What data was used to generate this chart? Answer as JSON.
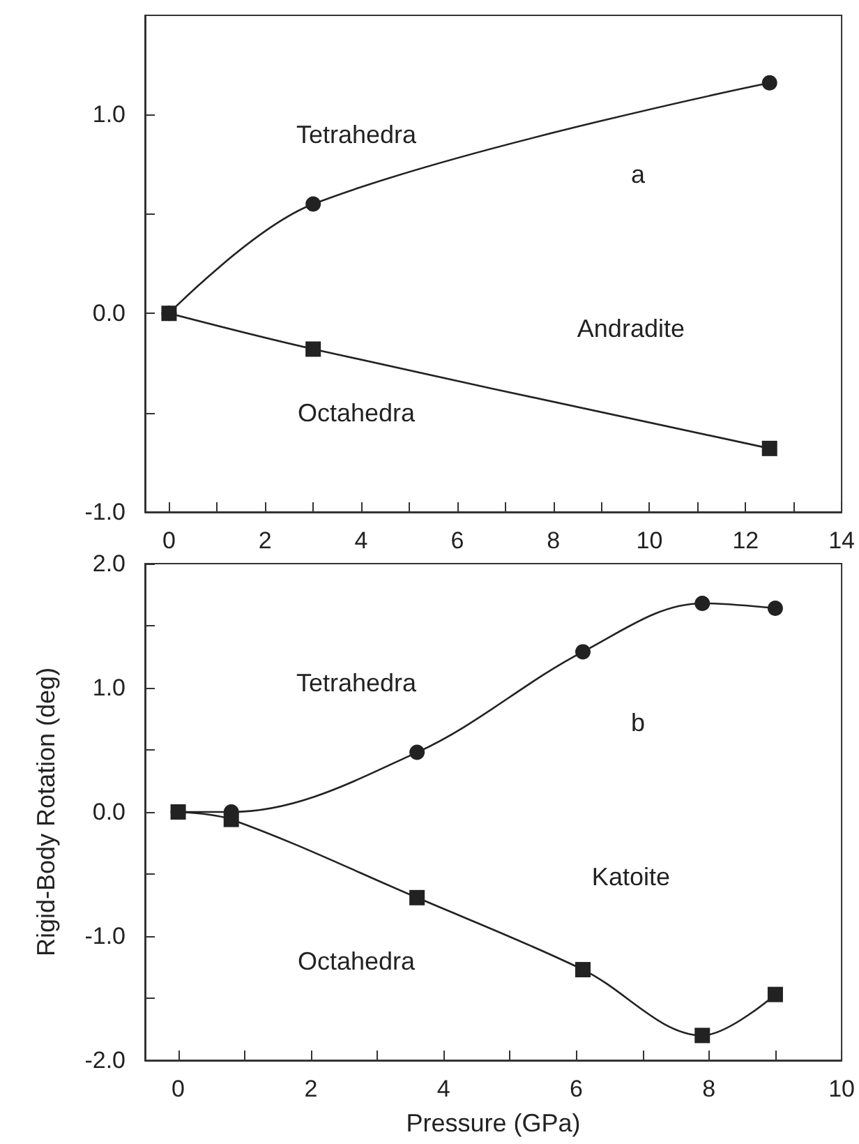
{
  "chart_data": [
    {
      "type": "line",
      "annotations": [
        "a",
        "Andradite"
      ],
      "xlim": [
        -0.5,
        14
      ],
      "xticks": [
        0,
        {
          "value": 1,
          "label": null
        },
        2,
        {
          "value": 3,
          "label": null
        },
        4,
        {
          "value": 5,
          "label": null
        },
        6,
        {
          "value": 7,
          "label": null
        },
        8,
        {
          "value": 9,
          "label": null
        },
        10,
        {
          "value": 11,
          "label": null
        },
        12,
        {
          "value": 13,
          "label": null
        },
        14
      ],
      "ylim": [
        -1,
        1.5
      ],
      "yticks": [
        {
          "value": -1,
          "label": "-1.0"
        },
        {
          "value": -0.5,
          "label": null
        },
        {
          "value": 0,
          "label": "0.0"
        },
        {
          "value": 0.5,
          "label": null
        },
        {
          "value": 1,
          "label": "1.0"
        }
      ],
      "grid": false,
      "legend": false,
      "series": [
        {
          "name": "Tetrahedra",
          "color": "#222222",
          "marker": "circle",
          "x": [
            0,
            3,
            12.5
          ],
          "values": [
            0,
            0.55,
            1.16
          ]
        },
        {
          "name": "Octahedra",
          "color": "#222222",
          "marker": "square",
          "x": [
            0,
            3,
            12.5
          ],
          "values": [
            0,
            -0.18,
            -0.68
          ]
        }
      ]
    },
    {
      "type": "line",
      "ylabel": "Rigid-Body Rotation (deg)",
      "xlabel": "Pressure (GPa)",
      "annotations": [
        "b",
        "Katoite"
      ],
      "xlim": [
        -0.5,
        10
      ],
      "xticks": [
        0,
        {
          "value": 1,
          "label": null
        },
        2,
        {
          "value": 3,
          "label": null
        },
        4,
        {
          "value": 5,
          "label": null
        },
        6,
        {
          "value": 7,
          "label": null
        },
        8,
        {
          "value": 9,
          "label": null
        },
        10
      ],
      "ylim": [
        -2,
        2
      ],
      "yticks": [
        {
          "value": -2,
          "label": "-2.0"
        },
        {
          "value": -1.5,
          "label": null
        },
        {
          "value": -1,
          "label": "-1.0"
        },
        {
          "value": -0.5,
          "label": null
        },
        {
          "value": 0,
          "label": "0.0"
        },
        {
          "value": 0.5,
          "label": null
        },
        {
          "value": 1,
          "label": "1.0"
        },
        {
          "value": 1.5,
          "label": null
        },
        {
          "value": 2,
          "label": "2.0"
        }
      ],
      "grid": false,
      "legend": false,
      "series": [
        {
          "name": "Tetrahedra",
          "color": "#222222",
          "marker": "circle",
          "x": [
            0,
            0.8,
            3.6,
            6.1,
            7.9,
            9
          ],
          "values": [
            0,
            0,
            0.48,
            1.29,
            1.68,
            1.64
          ]
        },
        {
          "name": "Octahedra",
          "color": "#222222",
          "marker": "square",
          "x": [
            0,
            0.8,
            3.6,
            6.1,
            7.9,
            9
          ],
          "values": [
            0,
            -0.06,
            -0.69,
            -1.27,
            -1.8,
            -1.47
          ]
        }
      ]
    }
  ]
}
